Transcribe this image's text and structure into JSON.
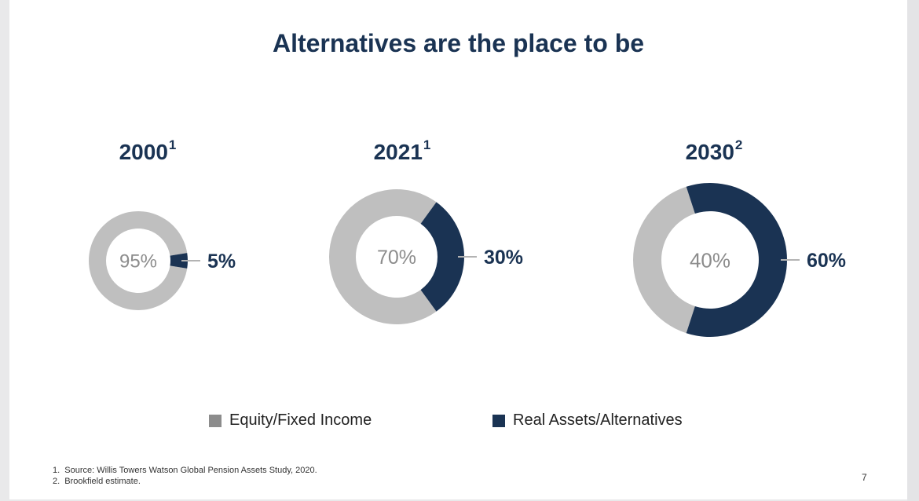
{
  "title": "Alternatives are the place to be",
  "chart_data": [
    {
      "type": "pie",
      "title": "2000",
      "title_footnote": "1",
      "categories": [
        "Equity/Fixed Income",
        "Real Assets/Alternatives"
      ],
      "values": [
        95,
        5
      ],
      "labels": [
        "95%",
        "5%"
      ]
    },
    {
      "type": "pie",
      "title": "2021",
      "title_footnote": "1",
      "categories": [
        "Equity/Fixed Income",
        "Real Assets/Alternatives"
      ],
      "values": [
        70,
        30
      ],
      "labels": [
        "70%",
        "30%"
      ]
    },
    {
      "type": "pie",
      "title": "2030",
      "title_footnote": "2",
      "categories": [
        "Equity/Fixed Income",
        "Real Assets/Alternatives"
      ],
      "values": [
        40,
        60
      ],
      "labels": [
        "40%",
        "60%"
      ]
    }
  ],
  "legend": [
    {
      "label": "Equity/Fixed Income",
      "color": "#8c8c8c"
    },
    {
      "label": "Real Assets/Alternatives",
      "color": "#1a3353"
    }
  ],
  "colors": {
    "equity": "#bfbfbf",
    "alternatives": "#1a3353",
    "center_text": "#8c8c8c",
    "label_text": "#1a3353"
  },
  "footnotes": [
    "1.  Source: Willis Towers Watson Global Pension Assets Study, 2020.",
    "2.  Brookfield estimate."
  ],
  "page_number": "7"
}
